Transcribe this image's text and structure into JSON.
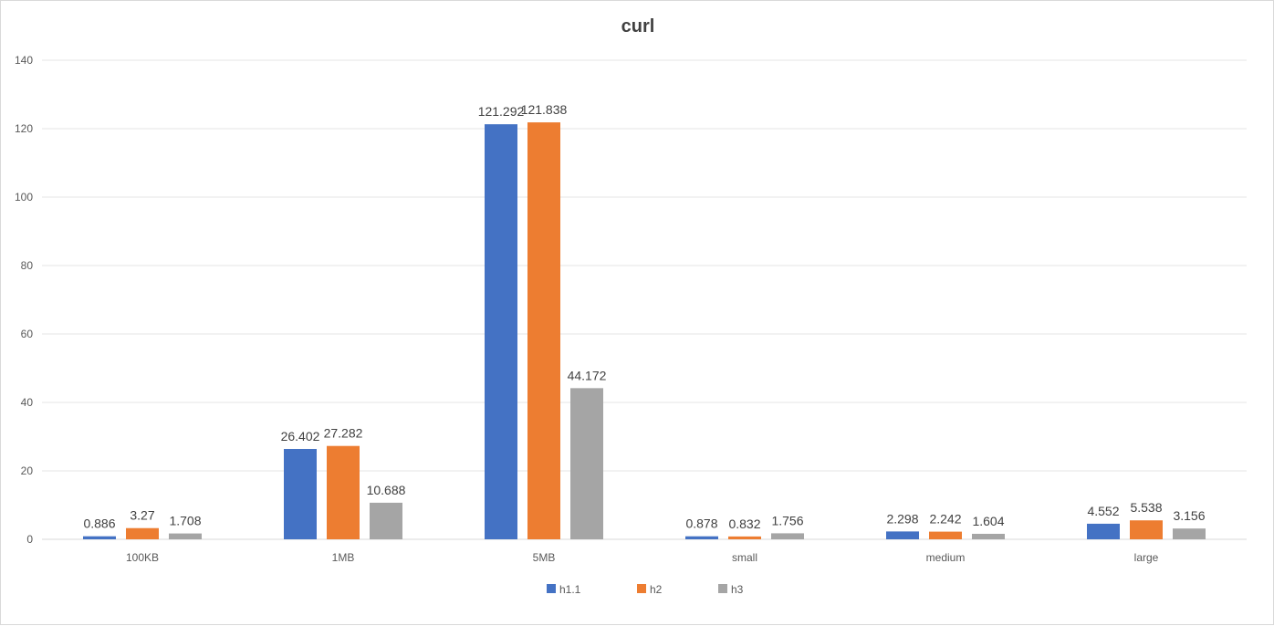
{
  "chart_data": {
    "type": "bar",
    "title": "curl",
    "xlabel": "",
    "ylabel": "",
    "categories": [
      "100KB",
      "1MB",
      "5MB",
      "small",
      "medium",
      "large"
    ],
    "series": [
      {
        "name": "h1.1",
        "color": "#4472C4",
        "values": [
          0.886,
          26.402,
          121.292,
          0.878,
          2.298,
          4.552
        ],
        "labels": [
          "0.886",
          "26.402",
          "121.292",
          "0.878",
          "2.298",
          "4.552"
        ]
      },
      {
        "name": "h2",
        "color": "#ED7D31",
        "values": [
          3.27,
          27.282,
          121.838,
          0.832,
          2.242,
          5.538
        ],
        "labels": [
          "3.27",
          "27.282",
          "121.838",
          "0.832",
          "2.242",
          "5.538"
        ]
      },
      {
        "name": "h3",
        "color": "#A5A5A5",
        "values": [
          1.708,
          10.688,
          44.172,
          1.756,
          1.604,
          3.156
        ],
        "labels": [
          "1.708",
          "10.688",
          "44.172",
          "1.756",
          "1.604",
          "3.156"
        ]
      }
    ],
    "ylim": [
      0,
      140
    ],
    "yticks": [
      0,
      20,
      40,
      60,
      80,
      100,
      120,
      140
    ],
    "grid": true,
    "legend_position": "bottom"
  }
}
